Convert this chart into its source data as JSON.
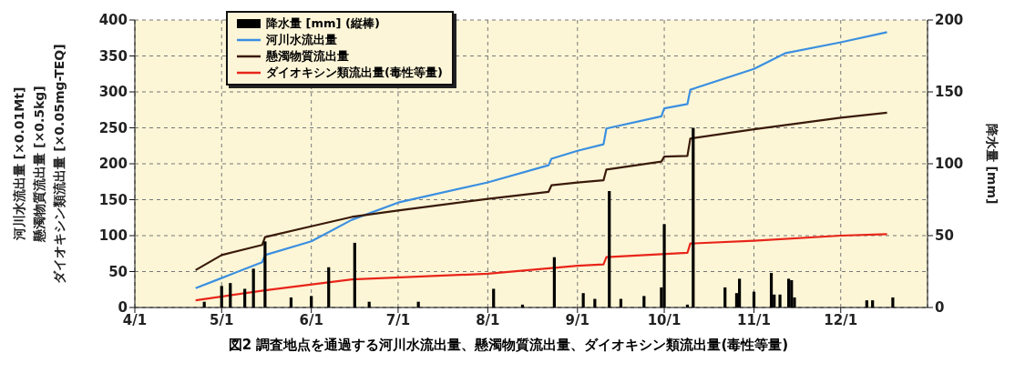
{
  "chart_data": {
    "type": "line",
    "title": "図2 調査地点を通過する河川水流出量、懸濁物質流出量、ダイオキシン類流出量(毒性等量)",
    "ylabel": "河川水流出量 [×0.01Mt]\n懸濁物質流出量 [×0.5kg]\nダイオキシン類流出量 [×0.05mg-TEQ]",
    "y2label": "降水量 [mm]",
    "xlim": [
      "--04-01",
      "--12-31"
    ],
    "xticks": [
      {
        "value": "--04-01",
        "label": "4/1"
      },
      {
        "value": "--05-01",
        "label": "5/1"
      },
      {
        "value": "--06-01",
        "label": "6/1"
      },
      {
        "value": "--07-01",
        "label": "7/1"
      },
      {
        "value": "--08-01",
        "label": "8/1"
      },
      {
        "value": "--09-01",
        "label": "9/1"
      },
      {
        "value": "--10-01",
        "label": "10/1"
      },
      {
        "value": "--11-01",
        "label": "11/1"
      },
      {
        "value": "--12-01",
        "label": "12/1"
      }
    ],
    "ylim": [
      0,
      400
    ],
    "yticks": [
      0,
      50,
      100,
      150,
      200,
      250,
      300,
      350,
      400
    ],
    "y2lim": [
      0,
      200
    ],
    "y2ticks": [
      0,
      50,
      100,
      150,
      200
    ],
    "grid": true,
    "legend": "top left",
    "marker": "none",
    "line_style": "solid",
    "series": [
      {
        "name": "降水量 [mm] (縦棒)",
        "type": "bar",
        "axis": "y2",
        "color": "#000000",
        "x": [
          "--04-25",
          "--05-01",
          "--05-04",
          "--05-09",
          "--05-12",
          "--05-16",
          "--05-25",
          "--06-01",
          "--06-07",
          "--06-16",
          "--06-21",
          "--07-08",
          "--08-03",
          "--08-13",
          "--08-24",
          "--09-03",
          "--09-07",
          "--09-12",
          "--09-16",
          "--09-24",
          "--09-30",
          "--10-01",
          "--10-09",
          "--10-11",
          "--10-22",
          "--10-26",
          "--10-27",
          "--11-01",
          "--11-07",
          "--11-08",
          "--11-10",
          "--11-13",
          "--11-14",
          "--11-15",
          "--12-10",
          "--12-12",
          "--12-19"
        ],
        "values": [
          4,
          15,
          17,
          13,
          27,
          46,
          7,
          8,
          28,
          45,
          4,
          4,
          13,
          2,
          35,
          10,
          6,
          81,
          6,
          8,
          14,
          58,
          2,
          125,
          14,
          10,
          20,
          11,
          24,
          9,
          9,
          20,
          19,
          7,
          5,
          5,
          7
        ]
      },
      {
        "name": "河川水流出量",
        "color": "#3a8fe0",
        "x": [
          "--04-22",
          "--05-01",
          "--05-15",
          "--05-16",
          "--06-01",
          "--06-15",
          "--07-01",
          "--08-01",
          "--08-22",
          "--08-23",
          "--09-01",
          "--09-10",
          "--09-11",
          "--09-30",
          "--10-01",
          "--10-09",
          "--10-10",
          "--11-01",
          "--11-12",
          "--12-01",
          "--12-17"
        ],
        "values": [
          27,
          41,
          63,
          73,
          92,
          122,
          146,
          174,
          198,
          207,
          218,
          227,
          249,
          266,
          277,
          283,
          303,
          332,
          354,
          369,
          383
        ]
      },
      {
        "name": "懸濁物質流出量",
        "color": "#3a1a0a",
        "x": [
          "--04-22",
          "--05-01",
          "--05-15",
          "--05-16",
          "--06-01",
          "--06-15",
          "--07-01",
          "--08-01",
          "--08-22",
          "--08-23",
          "--09-01",
          "--09-10",
          "--09-11",
          "--09-30",
          "--10-01",
          "--10-09",
          "--10-10",
          "--11-01",
          "--12-01",
          "--12-17"
        ],
        "values": [
          52,
          73,
          87,
          98,
          113,
          126,
          135,
          151,
          161,
          170,
          174,
          177,
          192,
          203,
          210,
          211,
          235,
          248,
          264,
          271
        ]
      },
      {
        "name": "ダイオキシン類流出量(毒性等量)",
        "color": "#e8251a",
        "x": [
          "--04-22",
          "--05-16",
          "--06-15",
          "--08-01",
          "--09-01",
          "--09-10",
          "--09-11",
          "--10-09",
          "--10-10",
          "--11-01",
          "--12-01",
          "--12-17"
        ],
        "values": [
          10,
          24,
          39,
          47,
          58,
          60,
          70,
          76,
          89,
          93,
          100,
          102
        ]
      }
    ]
  }
}
